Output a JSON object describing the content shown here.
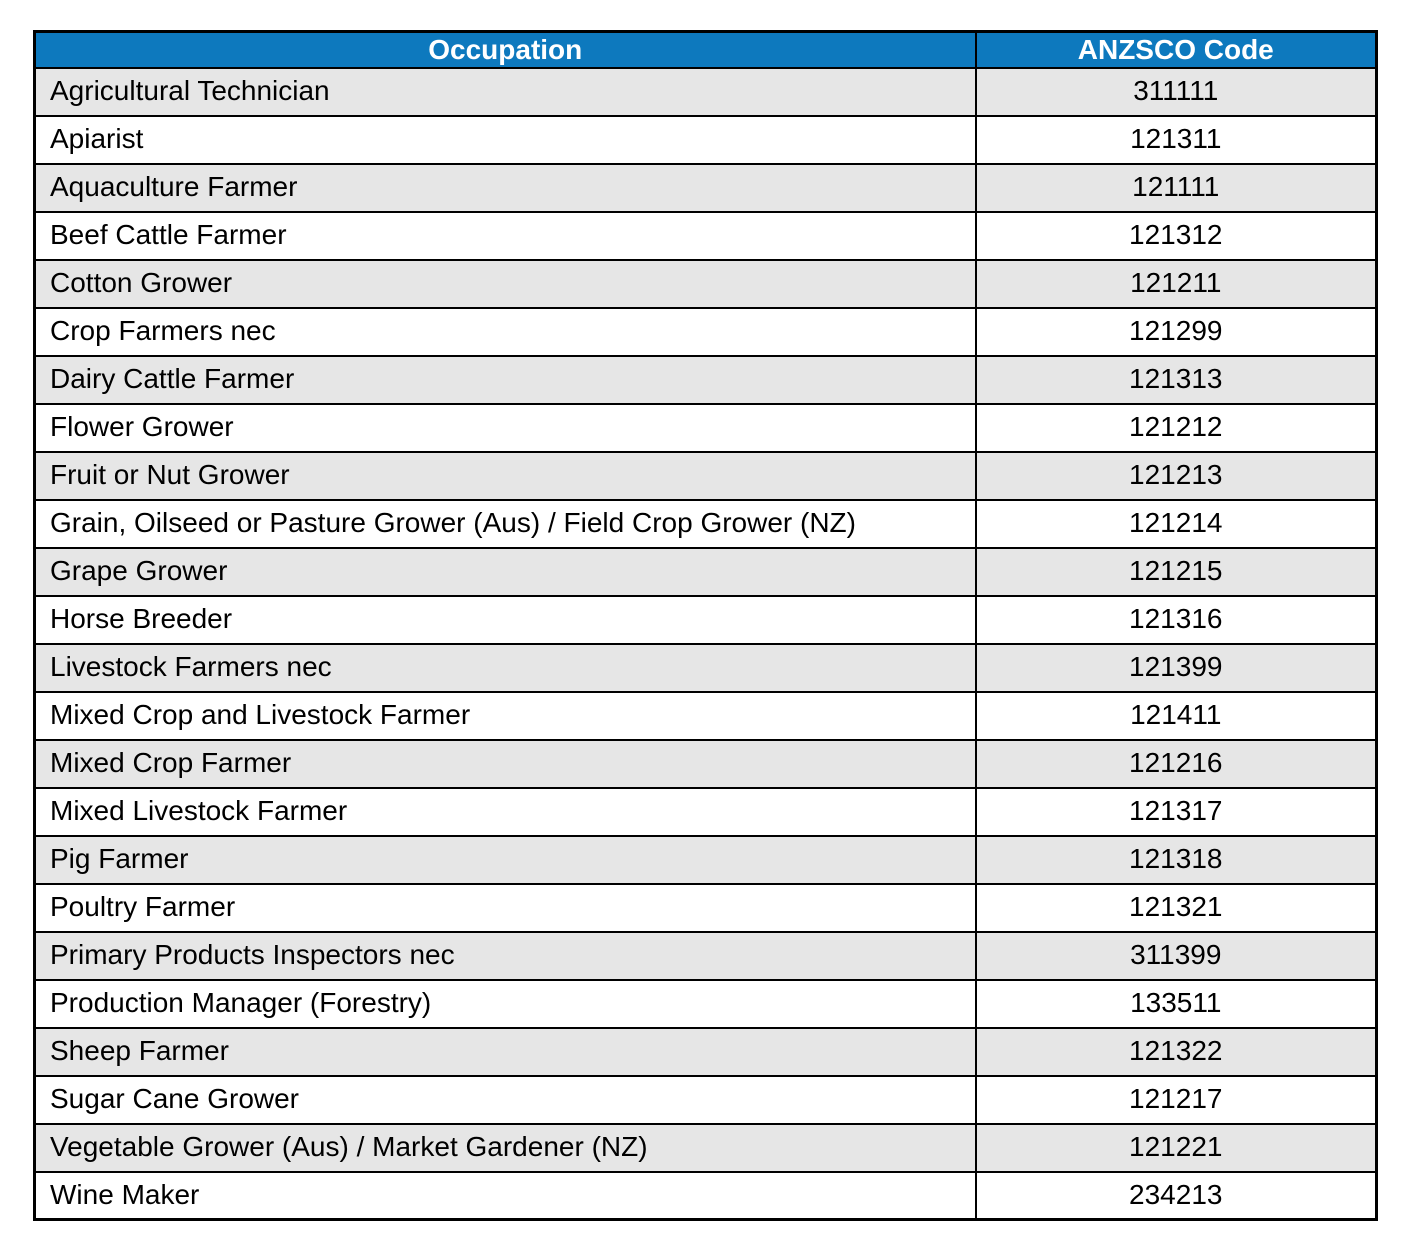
{
  "table": {
    "name": "anzsco-occupation-codes",
    "columns": [
      {
        "label": "Occupation"
      },
      {
        "label": "ANZSCO Code"
      }
    ],
    "rows": [
      {
        "occupation": "Agricultural Technician",
        "code": "311111"
      },
      {
        "occupation": "Apiarist",
        "code": "121311"
      },
      {
        "occupation": "Aquaculture Farmer",
        "code": "121111"
      },
      {
        "occupation": "Beef Cattle Farmer",
        "code": "121312"
      },
      {
        "occupation": "Cotton Grower",
        "code": "121211"
      },
      {
        "occupation": "Crop Farmers nec",
        "code": "121299"
      },
      {
        "occupation": "Dairy Cattle Farmer",
        "code": "121313"
      },
      {
        "occupation": "Flower Grower",
        "code": "121212"
      },
      {
        "occupation": "Fruit or Nut Grower",
        "code": "121213"
      },
      {
        "occupation": "Grain, Oilseed or Pasture Grower (Aus) / Field Crop Grower (NZ)",
        "code": "121214"
      },
      {
        "occupation": "Grape Grower",
        "code": "121215"
      },
      {
        "occupation": "Horse Breeder",
        "code": "121316"
      },
      {
        "occupation": "Livestock Farmers nec",
        "code": "121399"
      },
      {
        "occupation": "Mixed Crop and Livestock Farmer",
        "code": "121411"
      },
      {
        "occupation": "Mixed Crop Farmer",
        "code": "121216"
      },
      {
        "occupation": "Mixed Livestock Farmer",
        "code": "121317"
      },
      {
        "occupation": "Pig Farmer",
        "code": "121318"
      },
      {
        "occupation": "Poultry Farmer",
        "code": "121321"
      },
      {
        "occupation": "Primary Products Inspectors nec",
        "code": "311399"
      },
      {
        "occupation": "Production Manager (Forestry)",
        "code": "133511"
      },
      {
        "occupation": "Sheep Farmer",
        "code": "121322"
      },
      {
        "occupation": "Sugar Cane Grower",
        "code": "121217"
      },
      {
        "occupation": "Vegetable Grower (Aus) / Market Gardener (NZ)",
        "code": "121221"
      },
      {
        "occupation": "Wine Maker",
        "code": "234213"
      }
    ],
    "colors": {
      "header_bg": "#0d79be",
      "header_text": "#ffffff",
      "row_alt_bg": "#e6e6e6",
      "row_bg": "#ffffff",
      "border": "#000000",
      "text": "#000000"
    }
  }
}
